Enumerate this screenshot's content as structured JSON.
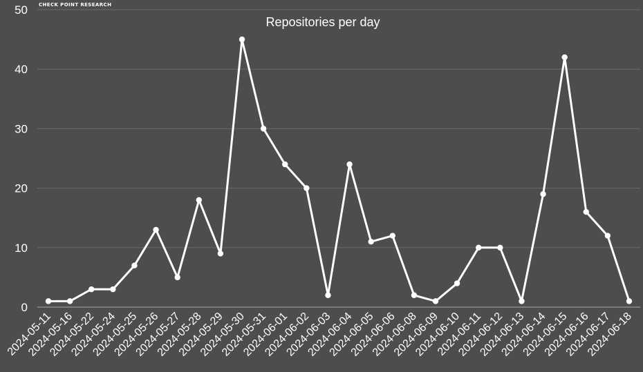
{
  "watermark": "CHECK POINT RESEARCH",
  "colors": {
    "background": "#4d4d4d",
    "line": "#ffffff",
    "grid": "#6a6a6a",
    "text": "#ffffff"
  },
  "chart_data": {
    "type": "line",
    "title": "Repositories per day",
    "xlabel": "",
    "ylabel": "",
    "ylim": [
      0,
      50
    ],
    "yticks": [
      0,
      10,
      20,
      30,
      40,
      50
    ],
    "grid": true,
    "legend": "none",
    "categories": [
      "2024-05-11",
      "2024-05-16",
      "2024-05-22",
      "2024-05-24",
      "2024-05-25",
      "2024-05-26",
      "2024-05-27",
      "2024-05-28",
      "2024-05-29",
      "2024-05-30",
      "2024-05-31",
      "2024-06-01",
      "2024-06-02",
      "2024-06-03",
      "2024-06-04",
      "2024-06-05",
      "2024-06-06",
      "2024-06-08",
      "2024-06-09",
      "2024-06-10",
      "2024-06-11",
      "2024-06-12",
      "2024-06-13",
      "2024-06-14",
      "2024-06-15",
      "2024-06-16",
      "2024-06-17",
      "2024-06-18"
    ],
    "values": [
      1,
      1,
      3,
      3,
      7,
      13,
      5,
      18,
      9,
      45,
      30,
      24,
      20,
      2,
      24,
      11,
      12,
      2,
      1,
      4,
      10,
      10,
      1,
      19,
      42,
      16,
      12,
      1
    ]
  }
}
